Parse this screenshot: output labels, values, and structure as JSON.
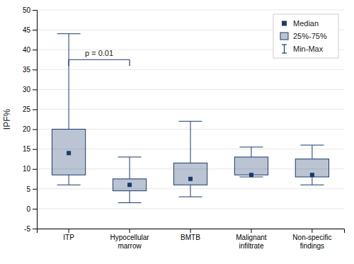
{
  "chart_data": {
    "type": "box",
    "categories": [
      "ITP",
      "Hypocellular marrow",
      "BMTB",
      "Malignant infiltrate",
      "Non-specific findings"
    ],
    "min": [
      6.0,
      1.5,
      3.0,
      8.0,
      6.0
    ],
    "q1": [
      8.5,
      4.5,
      6.0,
      8.5,
      8.0
    ],
    "median": [
      14.0,
      6.0,
      7.5,
      8.5,
      8.5
    ],
    "q3": [
      20.0,
      7.5,
      11.5,
      13.0,
      12.5
    ],
    "max": [
      44.0,
      13.0,
      22.0,
      15.5,
      16.0
    ],
    "color": "#1a3a6b",
    "ylabel": "IPF%",
    "ylim": [
      -5,
      50
    ],
    "yticks": [
      -5,
      0,
      5,
      10,
      15,
      20,
      25,
      30,
      35,
      40,
      45,
      50
    ],
    "grid": true,
    "annotations": [
      {
        "text": "p = 0.01",
        "y": 37.5,
        "from": "ITP",
        "to": "Hypocellular marrow"
      }
    ],
    "legend": "upper right",
    "legend_labels": [
      "Median",
      "25%-75%",
      "Min-Max"
    ]
  }
}
